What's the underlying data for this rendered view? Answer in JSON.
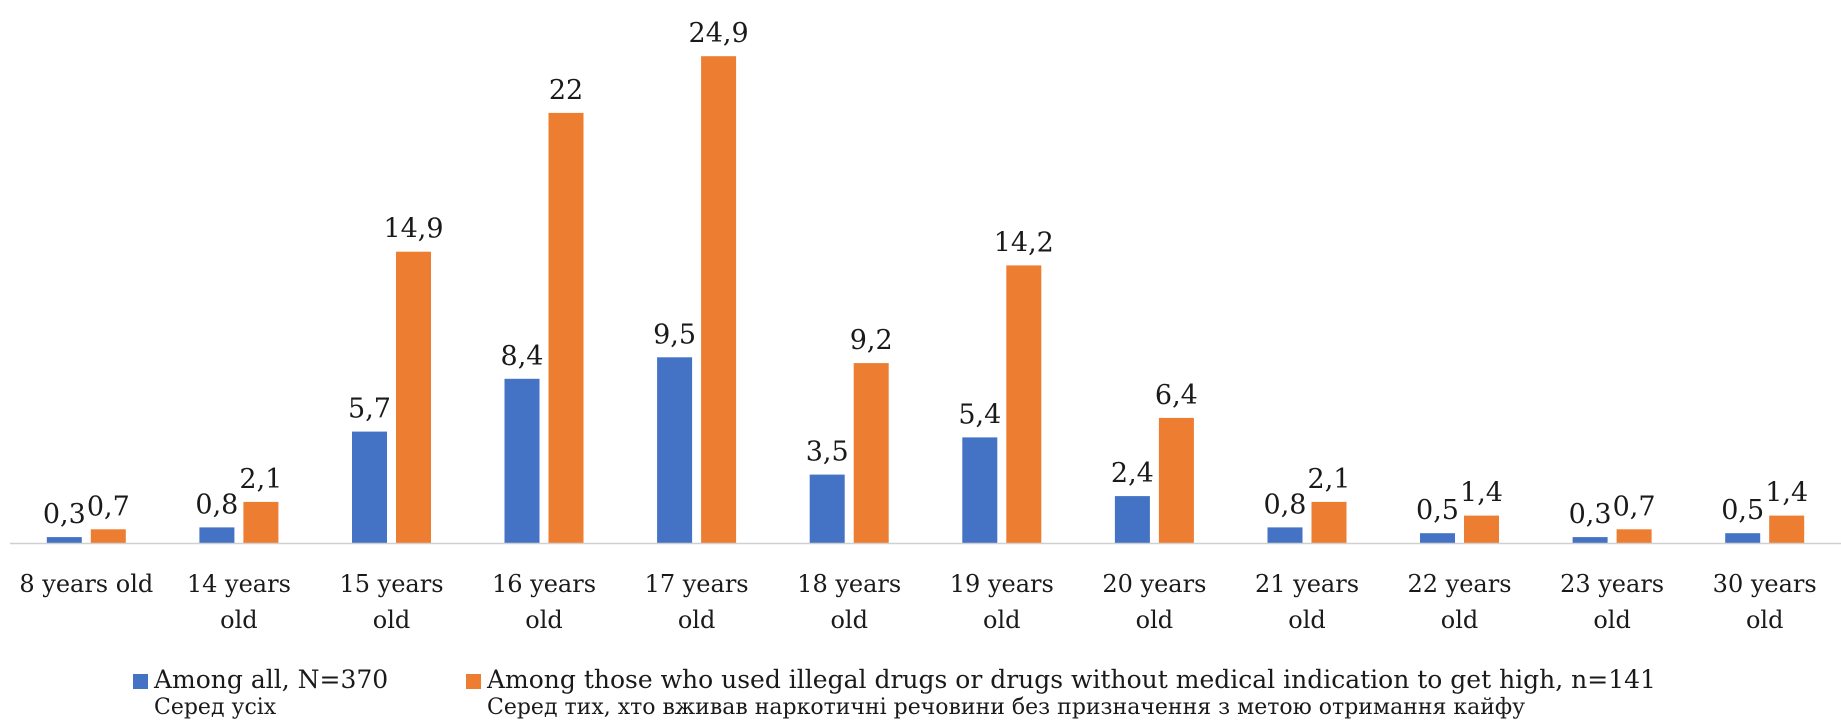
{
  "chart_data": {
    "type": "bar",
    "categories": [
      [
        "8 years old"
      ],
      [
        "14 years",
        "old"
      ],
      [
        "15 years",
        "old"
      ],
      [
        "16 years",
        "old"
      ],
      [
        "17 years",
        "old"
      ],
      [
        "18 years",
        "old"
      ],
      [
        "19 years",
        "old"
      ],
      [
        "20 years",
        "old"
      ],
      [
        "21 years",
        "old"
      ],
      [
        "22 years",
        "old"
      ],
      [
        "23 years",
        "old"
      ],
      [
        "30 years",
        "old"
      ]
    ],
    "series": [
      {
        "name": "Among all, N=370",
        "name_sub": "Серед усіх",
        "color": "#4472C4",
        "values": [
          0.3,
          0.8,
          5.7,
          8.4,
          9.5,
          3.5,
          5.4,
          2.4,
          0.8,
          0.5,
          0.3,
          0.5
        ],
        "labels": [
          "0,3",
          "0,8",
          "5,7",
          "8,4",
          "9,5",
          "3,5",
          "5,4",
          "2,4",
          "0,8",
          "0,5",
          "0,3",
          "0,5"
        ]
      },
      {
        "name": "Among those who used illegal drugs or drugs without medical indication to get high, n=141",
        "name_sub": "Серед тих, хто вживав наркотичні речовини без призначення з метою отримання кайфу",
        "color": "#ED7D31",
        "values": [
          0.7,
          2.1,
          14.9,
          22,
          24.9,
          9.2,
          14.2,
          6.4,
          2.1,
          1.4,
          0.7,
          1.4
        ],
        "labels": [
          "0,7",
          "2,1",
          "14,9",
          "22",
          "24,9",
          "9,2",
          "14,2",
          "6,4",
          "2,1",
          "1,4",
          "0,7",
          "1,4"
        ]
      }
    ],
    "ylim": [
      0,
      25
    ],
    "legend_position": "bottom",
    "grid": false
  }
}
